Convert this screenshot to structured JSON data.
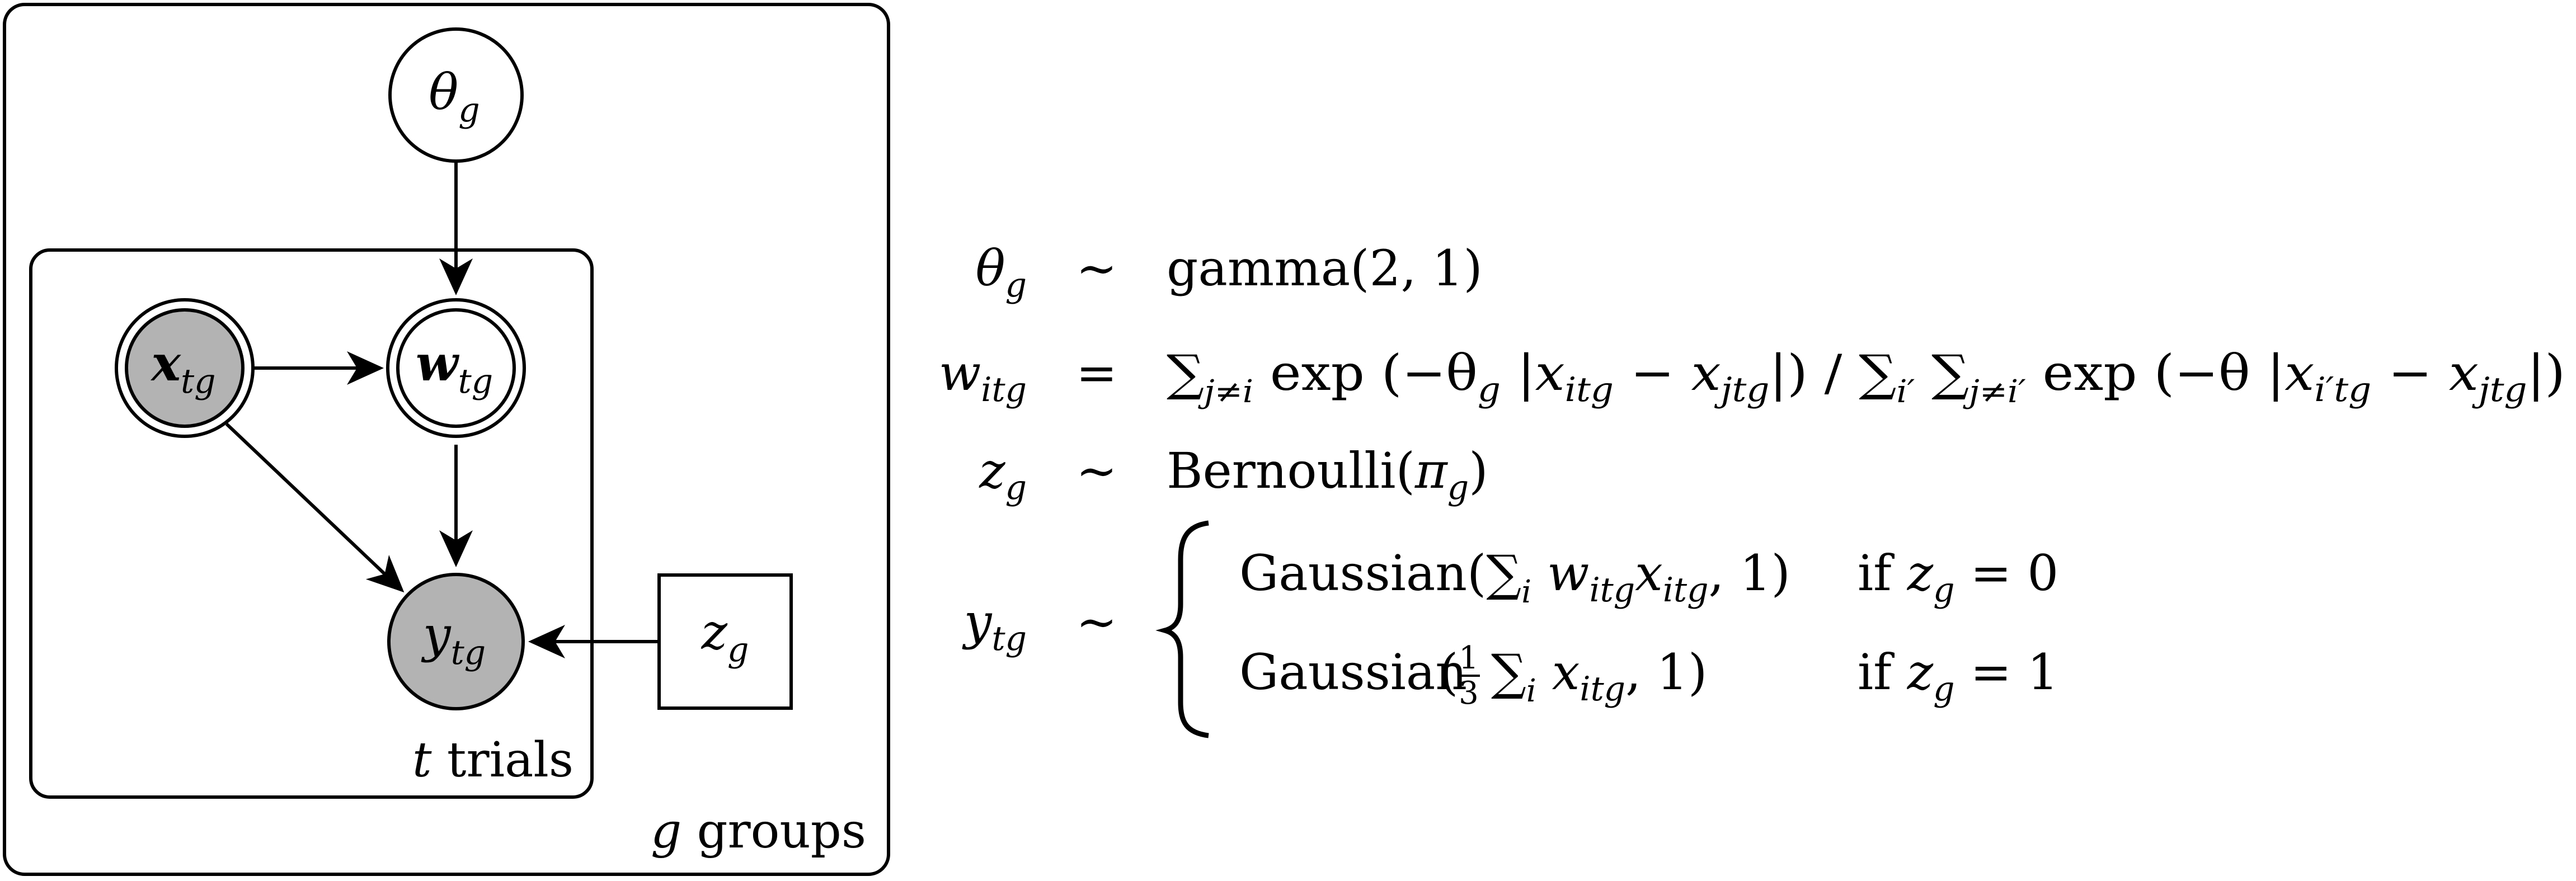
{
  "plates": {
    "outer_label_var": "g",
    "outer_label_text": "groups",
    "inner_label_var": "t",
    "inner_label_text": "trials"
  },
  "nodes": {
    "theta": {
      "symbol": "θ",
      "sub": "g",
      "observed": false,
      "double_border": false,
      "shape": "circle"
    },
    "x": {
      "symbol": "x",
      "sub": "tg",
      "observed": true,
      "double_border": true,
      "shape": "circle"
    },
    "w": {
      "symbol": "w",
      "sub": "tg",
      "observed": false,
      "double_border": true,
      "shape": "circle"
    },
    "y": {
      "symbol": "y",
      "sub": "tg",
      "observed": true,
      "double_border": false,
      "shape": "circle"
    },
    "z": {
      "symbol": "z",
      "sub": "g",
      "observed": false,
      "double_border": false,
      "shape": "square"
    }
  },
  "edges": [
    {
      "from": "theta",
      "to": "w"
    },
    {
      "from": "x",
      "to": "w"
    },
    {
      "from": "x",
      "to": "y"
    },
    {
      "from": "w",
      "to": "y"
    },
    {
      "from": "z",
      "to": "y"
    }
  ],
  "equations": {
    "theta": {
      "lhs": "θ",
      "lhs_sub": "g",
      "rel": "∼",
      "dist": "gamma",
      "args": "2, 1"
    },
    "w": {
      "lhs": "w",
      "lhs_sub": "itg",
      "rel": "=",
      "sum1": "∑",
      "sum1_sub": "j≠i",
      "exp1": "exp",
      "inner1": "−θ",
      "inner1_sub": "g",
      "abs1_a": "x",
      "abs1_a_sub": "itg",
      "minus": "−",
      "abs1_b": "x",
      "abs1_b_sub": "jtg",
      "slash": "/",
      "sum2": "∑",
      "sum2_sub": "i′",
      "sum3": "∑",
      "sum3_sub": "j≠i′",
      "exp2": "exp",
      "inner2": "−θ",
      "abs2_a": "x",
      "abs2_a_sub": "i′tg",
      "abs2_b": "x",
      "abs2_b_sub": "jtg"
    },
    "z": {
      "lhs": "z",
      "lhs_sub": "g",
      "rel": "∼",
      "dist": "Bernoulli",
      "arg": "π",
      "arg_sub": "g"
    },
    "y": {
      "lhs": "y",
      "lhs_sub": "tg",
      "rel": "∼",
      "case1": {
        "dist": "Gaussian",
        "sum": "∑",
        "sum_sub": "i",
        "w": "w",
        "w_sub": "itg",
        "x": "x",
        "x_sub": "itg",
        "tail": ", 1",
        "cond_if": "if",
        "cond_var": "z",
        "cond_sub": "g",
        "cond_val": "= 0"
      },
      "case2": {
        "dist": "Gaussian",
        "frac_num": "1",
        "frac_den": "3",
        "sum": "∑",
        "sum_sub": "i",
        "x": "x",
        "x_sub": "itg",
        "tail": ", 1",
        "cond_if": "if",
        "cond_var": "z",
        "cond_sub": "g",
        "cond_val": "= 1"
      }
    }
  },
  "colors": {
    "stroke": "#000000",
    "observed_fill": "#b3b3b3",
    "background": "#ffffff"
  }
}
